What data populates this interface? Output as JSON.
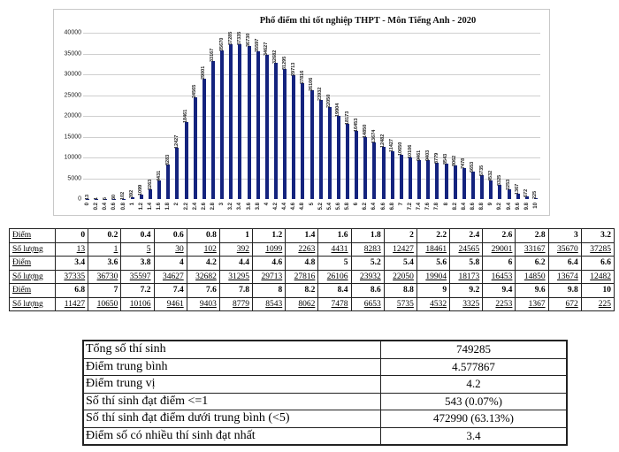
{
  "chart_data": {
    "type": "bar",
    "title": "Phổ điểm thi tốt nghiệp THPT - Môn Tiếng Anh - 2020",
    "xlabel": "",
    "ylabel": "",
    "ylim": [
      0,
      40000
    ],
    "yticks": [
      "0",
      "5000",
      "10000",
      "15000",
      "20000",
      "25000",
      "30000",
      "35000",
      "40000"
    ],
    "grid": true,
    "legend": "none",
    "bar_color": "#14237e",
    "categories": [
      "0",
      "0.2",
      "0.4",
      "0.6",
      "0.8",
      "1",
      "1.2",
      "1.4",
      "1.6",
      "1.8",
      "2",
      "2.2",
      "2.4",
      "2.6",
      "2.8",
      "3",
      "3.2",
      "3.4",
      "3.6",
      "3.8",
      "4",
      "4.2",
      "4.4",
      "4.6",
      "4.8",
      "5",
      "5.2",
      "5.4",
      "5.6",
      "5.8",
      "6",
      "6.2",
      "6.4",
      "6.6",
      "6.8",
      "7",
      "7.2",
      "7.4",
      "7.6",
      "7.8",
      "8",
      "8.2",
      "8.4",
      "8.6",
      "8.8",
      "9",
      "9.2",
      "9.4",
      "9.6",
      "9.8",
      "10"
    ],
    "values": [
      13,
      1,
      5,
      30,
      102,
      392,
      1099,
      2263,
      4431,
      8283,
      12427,
      18461,
      24565,
      29001,
      33167,
      35670,
      37285,
      37335,
      36730,
      35597,
      34627,
      32682,
      31295,
      29713,
      27816,
      26106,
      23932,
      22050,
      19904,
      18173,
      16453,
      14850,
      13674,
      12482,
      11427,
      10650,
      10106,
      9461,
      9403,
      8779,
      8543,
      8062,
      7478,
      6653,
      5735,
      4532,
      3325,
      2253,
      1367,
      672,
      225
    ]
  },
  "score_table": {
    "row_labels": {
      "score": "Điểm",
      "count": "Số lượng"
    },
    "blocks": [
      {
        "scores": [
          "0",
          "0.2",
          "0.4",
          "0.6",
          "0.8",
          "1",
          "1.2",
          "1.4",
          "1.6",
          "1.8",
          "2",
          "2.2",
          "2.4",
          "2.6",
          "2.8",
          "3",
          "3.2"
        ],
        "counts": [
          "13",
          "1",
          "5",
          "30",
          "102",
          "392",
          "1099",
          "2263",
          "4431",
          "8283",
          "12427",
          "18461",
          "24565",
          "29001",
          "33167",
          "35670",
          "37285"
        ]
      },
      {
        "scores": [
          "3.4",
          "3.6",
          "3.8",
          "4",
          "4.2",
          "4.4",
          "4.6",
          "4.8",
          "5",
          "5.2",
          "5.4",
          "5.6",
          "5.8",
          "6",
          "6.2",
          "6.4",
          "6.6"
        ],
        "counts": [
          "37335",
          "36730",
          "35597",
          "34627",
          "32682",
          "31295",
          "29713",
          "27816",
          "26106",
          "23932",
          "22050",
          "19904",
          "18173",
          "16453",
          "14850",
          "13674",
          "12482"
        ]
      },
      {
        "scores": [
          "6.8",
          "7",
          "7.2",
          "7.4",
          "7.6",
          "7.8",
          "8",
          "8.2",
          "8.4",
          "8.6",
          "8.8",
          "9",
          "9.2",
          "9.4",
          "9.6",
          "9.8",
          "10"
        ],
        "counts": [
          "11427",
          "10650",
          "10106",
          "9461",
          "9403",
          "8779",
          "8543",
          "8062",
          "7478",
          "6653",
          "5735",
          "4532",
          "3325",
          "2253",
          "1367",
          "672",
          "225"
        ]
      }
    ]
  },
  "summary_table": {
    "rows": [
      {
        "label": "Tổng số thí sinh",
        "value": "749285"
      },
      {
        "label": "Điểm trung bình",
        "value": "4.577867"
      },
      {
        "label": "Điểm trung vị",
        "value": "4.2"
      },
      {
        "label": "Số thí sinh đạt điểm <=1",
        "value": "543 (0.07%)"
      },
      {
        "label": "Số thí sinh đạt điểm dưới trung bình (<5)",
        "value": "472990 (63.13%)"
      },
      {
        "label": "Điểm số có nhiều thí sinh đạt nhất",
        "value": "3.4"
      }
    ]
  }
}
